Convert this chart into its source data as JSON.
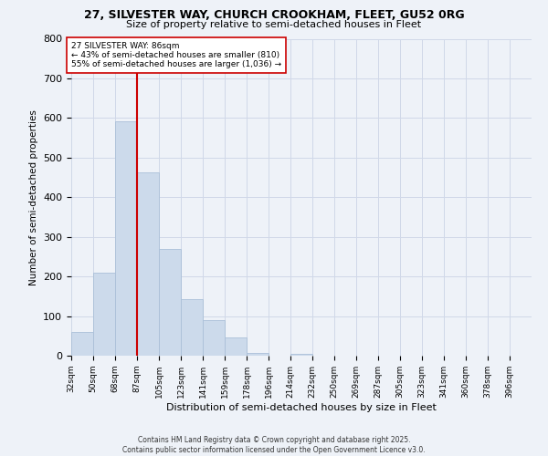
{
  "title_line1": "27, SILVESTER WAY, CHURCH CROOKHAM, FLEET, GU52 0RG",
  "title_line2": "Size of property relative to semi-detached houses in Fleet",
  "xlabel": "Distribution of semi-detached houses by size in Fleet",
  "ylabel": "Number of semi-detached properties",
  "bin_labels": [
    "32sqm",
    "50sqm",
    "68sqm",
    "87sqm",
    "105sqm",
    "123sqm",
    "141sqm",
    "159sqm",
    "178sqm",
    "196sqm",
    "214sqm",
    "232sqm",
    "250sqm",
    "269sqm",
    "287sqm",
    "305sqm",
    "323sqm",
    "341sqm",
    "360sqm",
    "378sqm",
    "396sqm"
  ],
  "bar_values": [
    60,
    210,
    592,
    463,
    270,
    143,
    90,
    47,
    8,
    0,
    5,
    0,
    0,
    0,
    0,
    0,
    0,
    0,
    0,
    0,
    0
  ],
  "bar_color": "#ccdaeb",
  "bar_edgecolor": "#aabfd8",
  "vline_color": "#cc0000",
  "annotation_title": "27 SILVESTER WAY: 86sqm",
  "annotation_line1": "← 43% of semi-detached houses are smaller (810)",
  "annotation_line2": "55% of semi-detached houses are larger (1,036) →",
  "annotation_box_color": "#ffffff",
  "annotation_box_edgecolor": "#cc0000",
  "ylim": [
    0,
    800
  ],
  "yticks": [
    0,
    100,
    200,
    300,
    400,
    500,
    600,
    700,
    800
  ],
  "grid_color": "#d0d8e8",
  "background_color": "#eef2f8",
  "footer_line1": "Contains HM Land Registry data © Crown copyright and database right 2025.",
  "footer_line2": "Contains public sector information licensed under the Open Government Licence v3.0."
}
